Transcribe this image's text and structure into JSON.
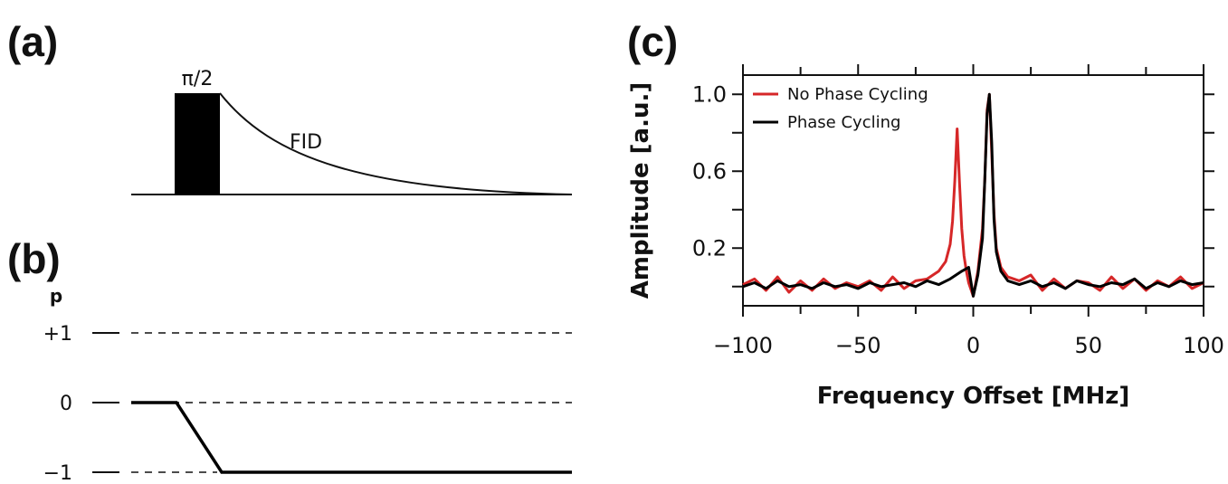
{
  "panels": {
    "a": {
      "label": "(a)",
      "pulse_label": "π/2",
      "fid_label": "FID"
    },
    "b": {
      "label": "(b)",
      "axis_letter": "p",
      "levels": [
        "+1",
        "0",
        "−1"
      ]
    },
    "c": {
      "label": "(c)"
    }
  },
  "chart_data": {
    "type": "line",
    "xlabel": "Frequency Offset [MHz]",
    "ylabel": "Amplitude [a.u.]",
    "xlim": [
      -100,
      100
    ],
    "ylim": [
      -0.1,
      1.1
    ],
    "xticks": [
      -100,
      -50,
      0,
      50,
      100
    ],
    "xtick_labels": [
      "−100",
      "−50",
      "0",
      "50",
      "100"
    ],
    "yticks": [
      0.2,
      0.6,
      1.0
    ],
    "ytick_labels": [
      "0.2",
      "0.6",
      "1.0"
    ],
    "legend_position": "top-left",
    "grid": false,
    "series": [
      {
        "name": "No Phase Cycling",
        "color": "#d62728",
        "x": [
          -100,
          -95,
          -90,
          -85,
          -80,
          -75,
          -70,
          -65,
          -60,
          -55,
          -50,
          -45,
          -40,
          -35,
          -30,
          -25,
          -20,
          -15,
          -12,
          -10,
          -9,
          -8,
          -7,
          -6,
          -5,
          -4,
          -3,
          -2,
          0,
          2,
          4,
          5,
          6,
          7,
          8,
          9,
          10,
          12,
          15,
          20,
          25,
          30,
          35,
          40,
          45,
          50,
          55,
          60,
          65,
          70,
          75,
          80,
          85,
          90,
          95,
          100
        ],
        "y": [
          0.01,
          0.04,
          -0.02,
          0.05,
          -0.03,
          0.03,
          -0.02,
          0.04,
          -0.01,
          0.02,
          0.0,
          0.03,
          -0.02,
          0.05,
          -0.01,
          0.03,
          0.04,
          0.08,
          0.13,
          0.22,
          0.34,
          0.55,
          0.82,
          0.55,
          0.3,
          0.16,
          0.08,
          0.02,
          -0.05,
          0.08,
          0.3,
          0.55,
          0.92,
          1.0,
          0.7,
          0.38,
          0.2,
          0.1,
          0.05,
          0.03,
          0.06,
          -0.02,
          0.04,
          -0.01,
          0.03,
          0.02,
          -0.02,
          0.05,
          -0.01,
          0.04,
          -0.02,
          0.03,
          0.0,
          0.05,
          -0.01,
          0.02
        ]
      },
      {
        "name": "Phase Cycling",
        "color": "#000000",
        "x": [
          -100,
          -95,
          -90,
          -85,
          -80,
          -75,
          -70,
          -65,
          -60,
          -55,
          -50,
          -45,
          -40,
          -35,
          -30,
          -25,
          -20,
          -15,
          -10,
          -5,
          -2,
          0,
          2,
          4,
          5,
          6,
          7,
          8,
          9,
          10,
          12,
          15,
          20,
          25,
          30,
          35,
          40,
          45,
          50,
          55,
          60,
          65,
          70,
          75,
          80,
          85,
          90,
          95,
          100
        ],
        "y": [
          0.0,
          0.02,
          -0.01,
          0.03,
          0.0,
          0.01,
          -0.01,
          0.02,
          0.0,
          0.01,
          -0.01,
          0.02,
          0.0,
          0.01,
          0.02,
          0.0,
          0.03,
          0.01,
          0.04,
          0.08,
          0.1,
          -0.05,
          0.06,
          0.25,
          0.55,
          0.9,
          1.0,
          0.75,
          0.35,
          0.18,
          0.08,
          0.03,
          0.01,
          0.03,
          0.0,
          0.02,
          -0.01,
          0.03,
          0.01,
          0.0,
          0.02,
          0.01,
          0.04,
          -0.01,
          0.02,
          0.0,
          0.03,
          0.01,
          0.02
        ]
      }
    ]
  }
}
